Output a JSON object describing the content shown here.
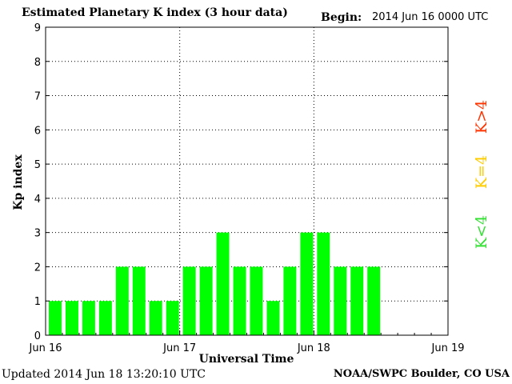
{
  "header": {
    "title": "Estimated Planetary K index (3 hour data)",
    "begin_label": "Begin:",
    "begin_value": "2014 Jun 16 0000 UTC"
  },
  "footer": {
    "updated": "Updated 2014 Jun 18 13:20:10 UTC",
    "source": "NOAA/SWPC Boulder, CO USA"
  },
  "legend": [
    {
      "text": "K<4",
      "color": "#33e033"
    },
    {
      "text": "K=4",
      "color": "#ffcc00"
    },
    {
      "text": "K>4",
      "color": "#ff3300"
    }
  ],
  "colors": {
    "bar": "#00ff00"
  },
  "chart_data": {
    "type": "bar",
    "ylabel": "Kp index",
    "xlabel": "Universal Time",
    "ylim": [
      0,
      9
    ],
    "yticks": [
      "0",
      "1",
      "2",
      "3",
      "4",
      "5",
      "6",
      "7",
      "8",
      "9"
    ],
    "xticks": [
      "Jun 16",
      "Jun 17",
      "Jun 18",
      "Jun 19"
    ],
    "x_unit": "3-hour intervals",
    "values": [
      1,
      1,
      1,
      1,
      2,
      2,
      1,
      1,
      2,
      2,
      3,
      2,
      2,
      1,
      2,
      3,
      3,
      2,
      2,
      2
    ],
    "grid": true
  }
}
